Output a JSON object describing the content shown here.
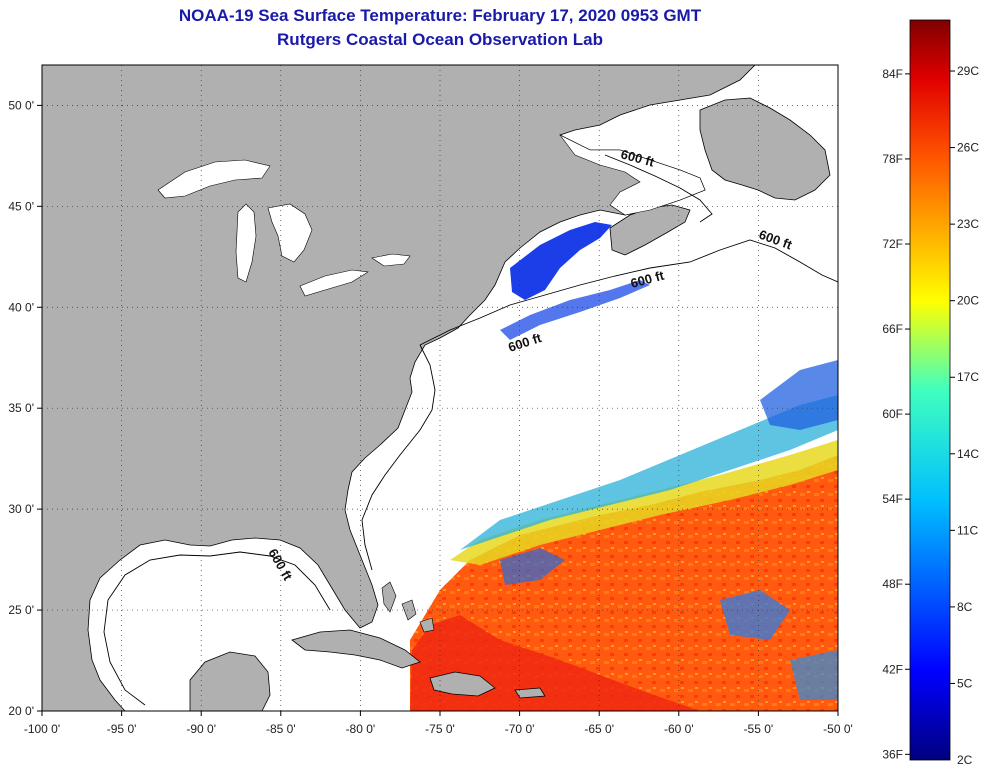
{
  "header": {
    "title": "NOAA-19 Sea Surface Temperature:  February 17, 2020 0953 GMT",
    "subtitle": "Rutgers Coastal Ocean Observation Lab"
  },
  "map": {
    "lon_range": [
      -100,
      -50
    ],
    "lat_range": [
      20,
      52
    ],
    "lon_ticks": [
      "-100 0'",
      "-95 0'",
      "-90 0'",
      "-85 0'",
      "-80 0'",
      "-75 0'",
      "-70 0'",
      "-65 0'",
      "-60 0'",
      "-55 0'",
      "-50 0'"
    ],
    "lat_ticks": [
      "20 0'",
      "25 0'",
      "30 0'",
      "35 0'",
      "40 0'",
      "45 0'",
      "50 0'"
    ],
    "contour_labels": [
      "600 ft",
      "600 ft",
      "600 ft",
      "600 ft",
      "600 ft"
    ],
    "colors": {
      "land": "#b0b0b0",
      "ocean": "#ffffff",
      "coast": "#000000"
    }
  },
  "colorbar": {
    "fahrenheit": [
      "84F",
      "78F",
      "72F",
      "66F",
      "60F",
      "54F",
      "48F",
      "42F",
      "36F"
    ],
    "celsius": [
      "29C",
      "26C",
      "23C",
      "20C",
      "17C",
      "14C",
      "11C",
      "8C",
      "5C",
      "2C"
    ],
    "range_c": [
      2,
      31
    ]
  }
}
